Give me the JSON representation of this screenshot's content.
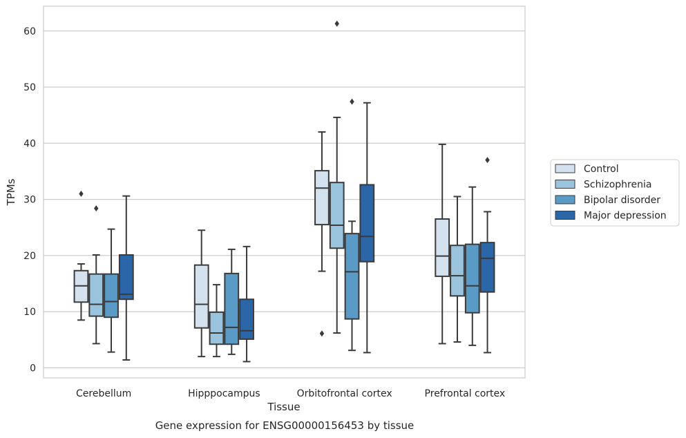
{
  "chart_data": {
    "type": "boxplot",
    "title": "",
    "caption": "Gene expression for ENSG00000156453 by tissue",
    "xlabel": "Tissue",
    "ylabel": "TPMs",
    "ylim": [
      -1.8,
      64.4
    ],
    "yticks": [
      0,
      10,
      20,
      30,
      40,
      50,
      60
    ],
    "grid": "horizontal",
    "legend_position": "outside-right",
    "categories": [
      "Cerebellum",
      "Hipppocampus",
      "Orbitofrontal cortex",
      "Prefrontal cortex"
    ],
    "series": [
      {
        "name": "Control",
        "color": "#d4e2f0",
        "boxes": [
          {
            "whisker_low": 8.5,
            "q1": 11.7,
            "median": 14.6,
            "q3": 17.3,
            "whisker_high": 18.5,
            "fliers": [
              31.0
            ]
          },
          {
            "whisker_low": 2.0,
            "q1": 7.1,
            "median": 11.3,
            "q3": 18.3,
            "whisker_high": 24.5,
            "fliers": []
          },
          {
            "whisker_low": 17.2,
            "q1": 25.5,
            "median": 32.0,
            "q3": 35.1,
            "whisker_high": 42.0,
            "fliers": [
              6.1
            ]
          },
          {
            "whisker_low": 4.3,
            "q1": 16.3,
            "median": 19.9,
            "q3": 26.5,
            "whisker_high": 39.8,
            "fliers": []
          }
        ]
      },
      {
        "name": "Schizophrenia",
        "color": "#9ac3dd",
        "boxes": [
          {
            "whisker_low": 4.3,
            "q1": 9.2,
            "median": 11.3,
            "q3": 16.7,
            "whisker_high": 20.1,
            "fliers": [
              28.4
            ]
          },
          {
            "whisker_low": 2.0,
            "q1": 4.2,
            "median": 6.2,
            "q3": 9.9,
            "whisker_high": 14.8,
            "fliers": []
          },
          {
            "whisker_low": 6.2,
            "q1": 21.3,
            "median": 25.4,
            "q3": 33.0,
            "whisker_high": 44.6,
            "fliers": [
              61.3
            ]
          },
          {
            "whisker_low": 4.6,
            "q1": 12.8,
            "median": 16.4,
            "q3": 21.8,
            "whisker_high": 30.5,
            "fliers": []
          }
        ]
      },
      {
        "name": "Bipolar disorder",
        "color": "#5a9ac6",
        "boxes": [
          {
            "whisker_low": 2.8,
            "q1": 9.0,
            "median": 11.8,
            "q3": 16.7,
            "whisker_high": 24.7,
            "fliers": []
          },
          {
            "whisker_low": 2.4,
            "q1": 4.2,
            "median": 7.2,
            "q3": 16.8,
            "whisker_high": 21.1,
            "fliers": []
          },
          {
            "whisker_low": 3.1,
            "q1": 8.7,
            "median": 17.1,
            "q3": 23.9,
            "whisker_high": 26.1,
            "fliers": [
              47.4
            ]
          },
          {
            "whisker_low": 4.0,
            "q1": 9.8,
            "median": 14.6,
            "q3": 22.0,
            "whisker_high": 32.2,
            "fliers": []
          }
        ]
      },
      {
        "name": "Major depression",
        "color": "#2a66a8",
        "boxes": [
          {
            "whisker_low": 1.4,
            "q1": 12.2,
            "median": 13.1,
            "q3": 20.1,
            "whisker_high": 30.6,
            "fliers": []
          },
          {
            "whisker_low": 1.1,
            "q1": 5.1,
            "median": 6.6,
            "q3": 12.2,
            "whisker_high": 21.6,
            "fliers": []
          },
          {
            "whisker_low": 2.7,
            "q1": 18.9,
            "median": 23.4,
            "q3": 32.6,
            "whisker_high": 47.2,
            "fliers": []
          },
          {
            "whisker_low": 2.7,
            "q1": 13.5,
            "median": 19.5,
            "q3": 22.3,
            "whisker_high": 27.8,
            "fliers": [
              37.0
            ]
          }
        ]
      }
    ]
  }
}
